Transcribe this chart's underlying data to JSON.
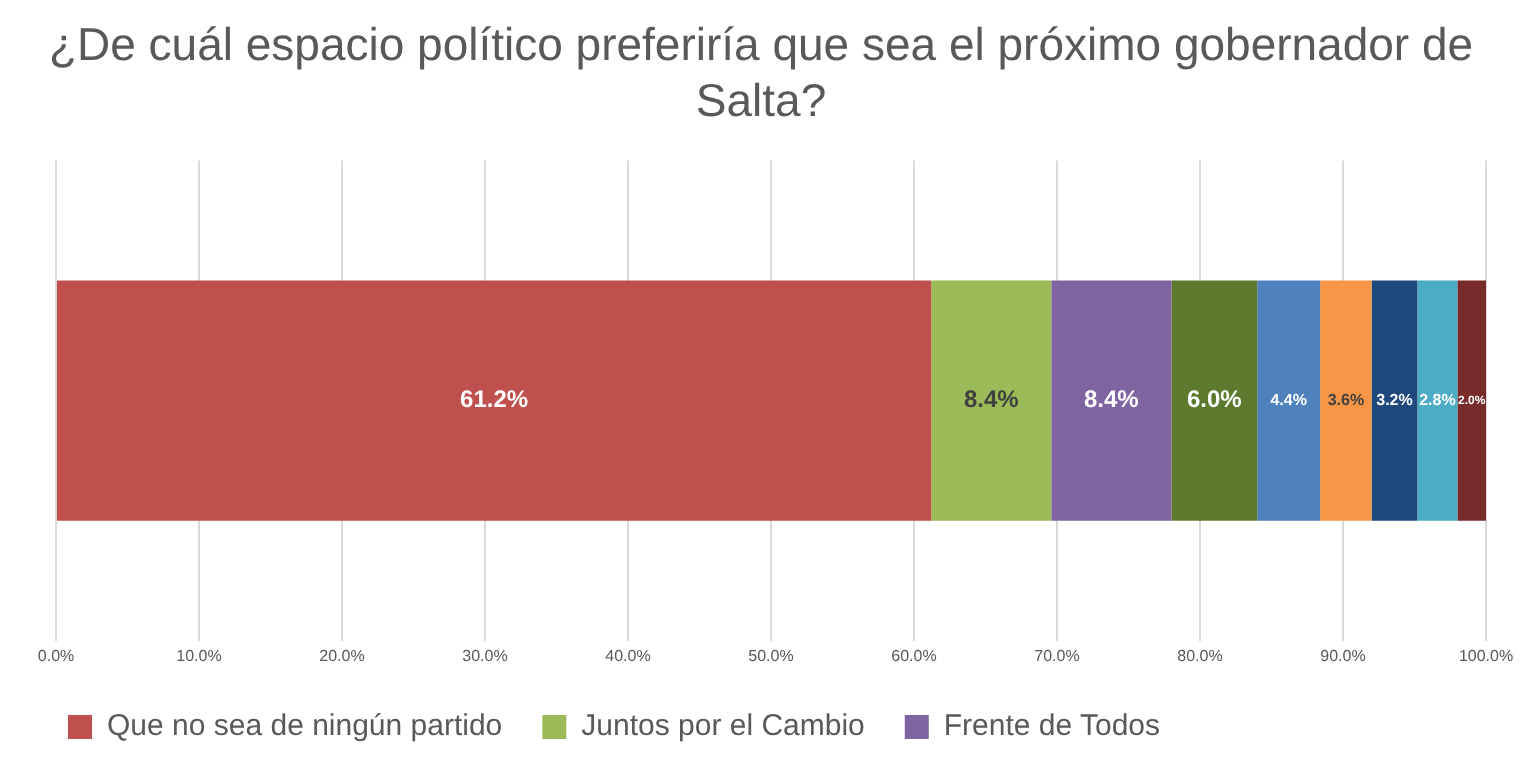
{
  "chart_data": {
    "type": "bar",
    "orientation": "horizontal",
    "stacked": true,
    "title": "¿De cuál espacio político preferiría que sea el próximo gobernador de Salta?",
    "categories": [
      null
    ],
    "series": [
      {
        "name": "Que no sea de ningún partido",
        "color": "#c0504d",
        "values": [
          61.2
        ],
        "value_labels": [
          "61.2%"
        ]
      },
      {
        "name": "Juntos por el Cambio",
        "color": "#9bbb59",
        "values": [
          8.4
        ],
        "value_labels": [
          "8.4%"
        ]
      },
      {
        "name": "Frente de Todos",
        "color": "#8064a2",
        "values": [
          8.4
        ],
        "value_labels": [
          "8.4%"
        ]
      },
      {
        "color": "#5b7a2e",
        "values": [
          6.0
        ],
        "value_labels": [
          "6.0%"
        ]
      },
      {
        "color": "#4f81bd",
        "values": [
          4.4
        ],
        "value_labels": [
          "4.4%"
        ]
      },
      {
        "color": "#f79646",
        "values": [
          3.6
        ],
        "value_labels": [
          "3.6%"
        ]
      },
      {
        "color": "#1f497d",
        "values": [
          3.2
        ],
        "value_labels": [
          "3.2%"
        ]
      },
      {
        "color": "#4bacc6",
        "values": [
          2.8
        ],
        "value_labels": [
          "2.8%"
        ]
      },
      {
        "color": "#772c2a",
        "values": [
          2.0
        ],
        "value_labels": [
          "2.0%"
        ]
      }
    ],
    "xlim": [
      0,
      100
    ],
    "xticks": [
      {
        "value": 0,
        "label": "0.0%"
      },
      {
        "value": 10,
        "label": "10.0%"
      },
      {
        "value": 20,
        "label": "20.0%"
      },
      {
        "value": 30,
        "label": "30.0%"
      },
      {
        "value": 40,
        "label": "40.0%"
      },
      {
        "value": 50,
        "label": "50.0%"
      },
      {
        "value": 60,
        "label": "60.0%"
      },
      {
        "value": 70,
        "label": "70.0%"
      },
      {
        "value": 80,
        "label": "80.0%"
      },
      {
        "value": 90,
        "label": "90.0%"
      },
      {
        "value": 100,
        "label": "100.0%"
      }
    ],
    "grid": "x",
    "legend": "bottom"
  }
}
